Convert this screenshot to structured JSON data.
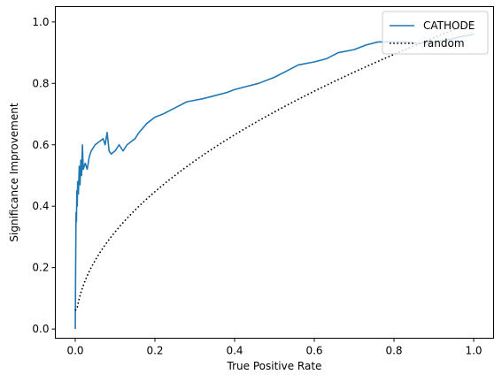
{
  "chart_data": {
    "type": "line",
    "title": "",
    "xlabel": "True Positive Rate",
    "ylabel": "Significance Improvement",
    "xlim": [
      -0.05,
      1.05
    ],
    "ylim": [
      -0.03,
      1.05
    ],
    "x_ticks": [
      "0.0",
      "0.2",
      "0.4",
      "0.6",
      "0.8",
      "1.0"
    ],
    "y_ticks": [
      "0.0",
      "0.2",
      "0.4",
      "0.6",
      "0.8",
      "1.0"
    ],
    "grid": false,
    "legend_position": "top-right",
    "series": [
      {
        "name": "CATHODE",
        "color": "#1f77b4",
        "style": "solid",
        "x": [
          0.0,
          0.001,
          0.002,
          0.003,
          0.004,
          0.005,
          0.006,
          0.008,
          0.01,
          0.012,
          0.014,
          0.016,
          0.018,
          0.02,
          0.025,
          0.03,
          0.035,
          0.04,
          0.05,
          0.06,
          0.07,
          0.075,
          0.08,
          0.085,
          0.09,
          0.1,
          0.11,
          0.12,
          0.13,
          0.14,
          0.15,
          0.16,
          0.18,
          0.2,
          0.22,
          0.25,
          0.28,
          0.3,
          0.32,
          0.35,
          0.38,
          0.4,
          0.43,
          0.46,
          0.5,
          0.53,
          0.56,
          0.6,
          0.63,
          0.66,
          0.7,
          0.73,
          0.76,
          0.8,
          0.83,
          0.86,
          0.9,
          0.93,
          0.96,
          1.0
        ],
        "y": [
          0.0,
          0.2,
          0.38,
          0.35,
          0.45,
          0.4,
          0.48,
          0.44,
          0.53,
          0.47,
          0.55,
          0.5,
          0.6,
          0.52,
          0.54,
          0.52,
          0.56,
          0.58,
          0.6,
          0.61,
          0.62,
          0.6,
          0.64,
          0.58,
          0.57,
          0.58,
          0.6,
          0.58,
          0.6,
          0.61,
          0.62,
          0.64,
          0.67,
          0.69,
          0.7,
          0.72,
          0.74,
          0.745,
          0.75,
          0.76,
          0.77,
          0.78,
          0.79,
          0.8,
          0.82,
          0.84,
          0.86,
          0.87,
          0.88,
          0.9,
          0.91,
          0.925,
          0.935,
          0.935,
          0.935,
          0.93,
          0.935,
          0.94,
          0.95,
          0.96
        ]
      },
      {
        "name": "random",
        "color": "#000000",
        "style": "dotted",
        "function": "sqrt",
        "x_start": 0.0,
        "x_end": 1.0,
        "y_start": 0.06
      }
    ]
  }
}
